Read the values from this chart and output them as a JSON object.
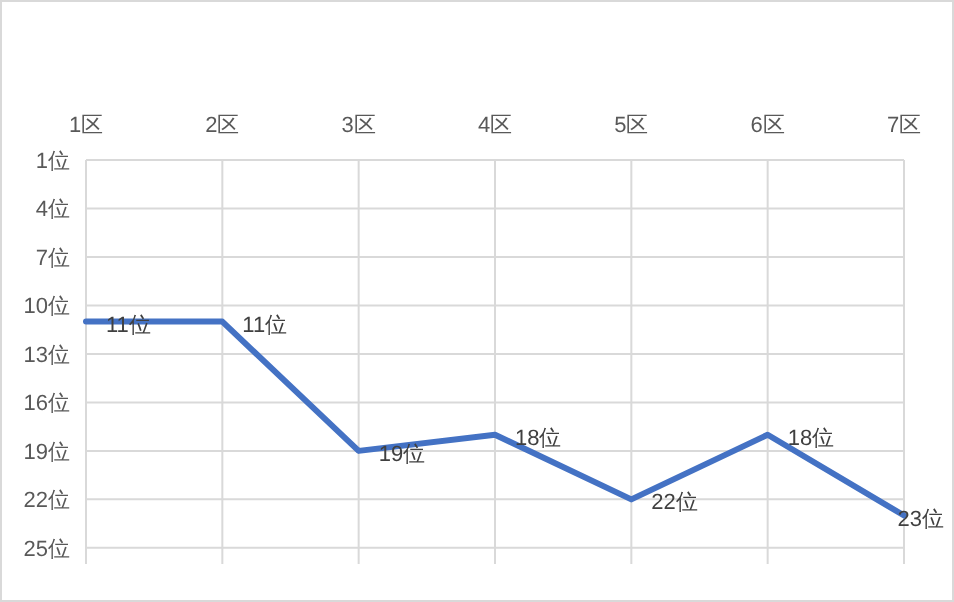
{
  "chart_data": {
    "type": "line",
    "categories": [
      "1区",
      "2区",
      "3区",
      "4区",
      "5区",
      "6区",
      "7区"
    ],
    "series": [
      {
        "color": "#4472c4",
        "values": [
          11,
          11,
          19,
          18,
          22,
          18,
          23
        ],
        "value_labels": [
          "11位",
          "11位",
          "19位",
          "18位",
          "22位",
          "18位",
          "23位"
        ]
      }
    ],
    "ylim": [
      26,
      1
    ],
    "yticks": [
      {
        "value": 1,
        "label": "1位"
      },
      {
        "value": 4,
        "label": "4位"
      },
      {
        "value": 7,
        "label": "7位"
      },
      {
        "value": 10,
        "label": "10位"
      },
      {
        "value": 13,
        "label": "13位"
      },
      {
        "value": 16,
        "label": "16位"
      },
      {
        "value": 19,
        "label": "19位"
      },
      {
        "value": 22,
        "label": "22位"
      },
      {
        "value": 25,
        "label": "25位"
      }
    ],
    "grid": true,
    "marker": "none",
    "line_style": "solid"
  }
}
